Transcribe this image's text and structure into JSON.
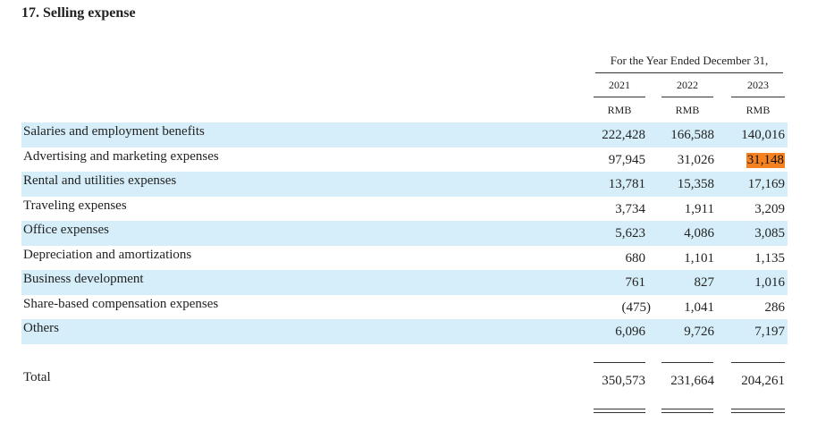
{
  "section": {
    "title": "17. Selling expense"
  },
  "header": {
    "period": "For the Year Ended December 31,",
    "years": [
      "2021",
      "2022",
      "2023"
    ],
    "units": [
      "RMB",
      "RMB",
      "RMB"
    ]
  },
  "rows": [
    {
      "label": "Salaries and employment benefits",
      "v2021": "222,428",
      "v2022": "166,588",
      "v2023": "140,016"
    },
    {
      "label": "Advertising and marketing expenses",
      "v2021": "97,945",
      "v2022": "31,026",
      "v2023": "31,148"
    },
    {
      "label": "Rental and utilities expenses",
      "v2021": "13,781",
      "v2022": "15,358",
      "v2023": "17,169"
    },
    {
      "label": "Traveling expenses",
      "v2021": "3,734",
      "v2022": "1,911",
      "v2023": "3,209"
    },
    {
      "label": "Office expenses",
      "v2021": "5,623",
      "v2022": "4,086",
      "v2023": "3,085"
    },
    {
      "label": "Depreciation and amortizations",
      "v2021": "680",
      "v2022": "1,101",
      "v2023": "1,135"
    },
    {
      "label": "Business development",
      "v2021": "761",
      "v2022": "827",
      "v2023": "1,016"
    },
    {
      "label": "Share-based compensation expenses",
      "v2021": "(475)",
      "v2022": "1,041",
      "v2023": "286"
    },
    {
      "label": "Others",
      "v2021": "6,096",
      "v2022": "9,726",
      "v2023": "7,197"
    }
  ],
  "total": {
    "label": "Total",
    "v2021": "350,573",
    "v2022": "231,664",
    "v2023": "204,261"
  },
  "colors": {
    "row_shade": "#d6eef9",
    "highlight": "#f58220"
  }
}
